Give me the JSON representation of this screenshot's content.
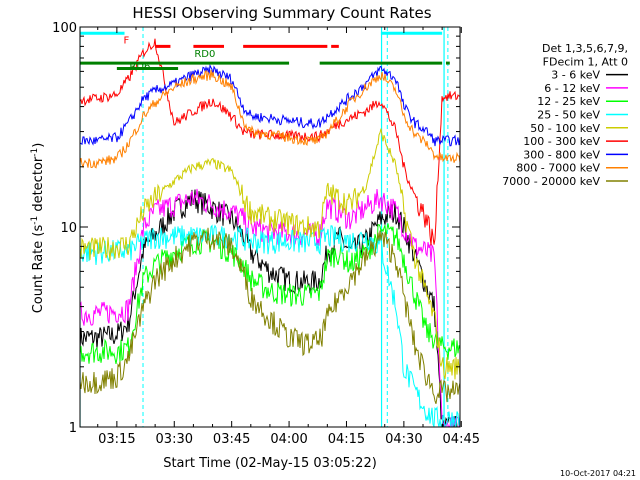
{
  "chart_data": {
    "type": "line",
    "title": "HESSI Observing Summary Count Rates",
    "xlabel": "Start Time (02-May-15 03:05:22)",
    "ylabel": "Count Rate (s⁻¹ detector⁻¹)",
    "ylabel_main": "Count Rate (s",
    "ylabel_sup1": "-1",
    "ylabel_mid": " detector",
    "ylabel_sup2": "-1",
    "ylabel_end": ")",
    "yscale": "log",
    "xlim": [
      "03:05:22",
      "04:44:40"
    ],
    "ylim": [
      1,
      100
    ],
    "x_ticks": [
      "03:15",
      "03:30",
      "03:45",
      "04:00",
      "04:15",
      "04:30",
      "04:45"
    ],
    "y_ticks": [
      "1",
      "10",
      "100"
    ],
    "legend_header": [
      "Det 1,3,5,6,7,9,",
      "FDecim 1, Att 0"
    ],
    "legend_position": "right",
    "timestamp": "10-Oct-2017 04:21",
    "annotations": [
      "F",
      "RD0",
      "RD6"
    ],
    "vertical_markers": {
      "solid": [
        "03:05:22",
        "04:24:10",
        "04:40:30"
      ],
      "dashed": [
        "03:21:50",
        "04:25:40",
        "04:41:30"
      ]
    },
    "series": [
      {
        "name": "3 - 6 keV",
        "color": "#000000",
        "x": [
          "03:05",
          "03:10",
          "03:15",
          "03:18",
          "03:22",
          "03:25",
          "03:30",
          "03:35",
          "03:40",
          "03:45",
          "03:48",
          "03:50",
          "03:55",
          "04:00",
          "04:05",
          "04:08",
          "04:10",
          "04:13",
          "04:16",
          "04:20",
          "04:24",
          "04:28",
          "04:30",
          "04:33",
          "04:36",
          "04:38",
          "04:40"
        ],
        "y": [
          2.8,
          2.8,
          2.9,
          3.3,
          7.8,
          9.2,
          12,
          14,
          12.5,
          11,
          9,
          7.5,
          6,
          5.4,
          5.3,
          5.4,
          7.5,
          9,
          7.5,
          8.5,
          11,
          12,
          10,
          7,
          5,
          4,
          1
        ]
      },
      {
        "name": "6 - 12 keV",
        "color": "#ff00ff",
        "x": [
          "03:05",
          "03:10",
          "03:15",
          "03:18",
          "03:22",
          "03:25",
          "03:30",
          "03:35",
          "03:40",
          "03:45",
          "03:48",
          "03:50",
          "03:55",
          "04:00",
          "04:05",
          "04:08",
          "04:10",
          "04:13",
          "04:16",
          "04:20",
          "04:24",
          "04:28",
          "04:30",
          "04:33",
          "04:36",
          "04:38",
          "04:40"
        ],
        "y": [
          3.7,
          3.7,
          3.8,
          3.9,
          10,
          12,
          13,
          14,
          13,
          12,
          11,
          10,
          9.5,
          9.3,
          9.2,
          9.3,
          13,
          12,
          11,
          12.5,
          14,
          12,
          10,
          8,
          7.5,
          7,
          1
        ]
      },
      {
        "name": "12 - 25 keV",
        "color": "#00ff00",
        "x": [
          "03:05",
          "03:10",
          "03:15",
          "03:18",
          "03:22",
          "03:25",
          "03:30",
          "03:35",
          "03:40",
          "03:45",
          "03:48",
          "03:50",
          "03:55",
          "04:00",
          "04:05",
          "04:08",
          "04:10",
          "04:13",
          "04:16",
          "04:20",
          "04:24",
          "04:28",
          "04:30",
          "04:33",
          "04:36",
          "04:38",
          "04:40"
        ],
        "y": [
          2.4,
          2.4,
          2.4,
          2.5,
          5.5,
          6.5,
          7.5,
          8.5,
          8.5,
          7.5,
          6.5,
          5.5,
          4.8,
          4.6,
          4.6,
          4.7,
          7,
          7.5,
          6.5,
          7.5,
          9.5,
          9,
          7,
          4.5,
          3,
          2.8,
          2.5
        ]
      },
      {
        "name": "25 - 50 keV",
        "color": "#00ffff",
        "x": [
          "03:05",
          "03:10",
          "03:15",
          "03:18",
          "03:22",
          "03:25",
          "03:30",
          "03:35",
          "03:40",
          "03:45",
          "03:48",
          "03:50",
          "03:55",
          "04:00",
          "04:05",
          "04:08",
          "04:10",
          "04:13",
          "04:16",
          "04:20",
          "04:24",
          "04:28",
          "04:30",
          "04:33",
          "04:36",
          "04:38",
          "04:40"
        ],
        "y": [
          7.5,
          7.5,
          7.6,
          7.6,
          8.5,
          9,
          9,
          9,
          9,
          9,
          8.8,
          8.5,
          8.5,
          8.5,
          8.4,
          8.5,
          9,
          8.8,
          8.5,
          9,
          8,
          4,
          2,
          1.5,
          1.2,
          1.1,
          1.1
        ]
      },
      {
        "name": "50 - 100 keV",
        "color": "#cccc00",
        "x": [
          "03:05",
          "03:10",
          "03:15",
          "03:18",
          "03:22",
          "03:25",
          "03:30",
          "03:35",
          "03:40",
          "03:45",
          "03:48",
          "03:50",
          "03:55",
          "04:00",
          "04:05",
          "04:08",
          "04:10",
          "04:13",
          "04:16",
          "04:20",
          "04:24",
          "04:28",
          "04:30",
          "04:33",
          "04:36",
          "04:38",
          "04:40"
        ],
        "y": [
          7.8,
          7.8,
          8,
          8.2,
          12,
          14,
          17,
          20,
          21,
          19,
          14,
          12,
          11,
          10.5,
          10,
          10,
          15,
          14,
          13,
          16,
          30,
          20,
          12,
          7,
          4.5,
          3.5,
          2
        ]
      },
      {
        "name": "100 - 300 keV",
        "color": "#ff0000",
        "x": [
          "03:05",
          "03:10",
          "03:15",
          "03:18",
          "03:22",
          "03:25",
          "03:30",
          "03:35",
          "03:40",
          "03:45",
          "03:48",
          "03:50",
          "03:55",
          "04:00",
          "04:05",
          "04:08",
          "04:10",
          "04:13",
          "04:16",
          "04:20",
          "04:24",
          "04:28",
          "04:30",
          "04:33",
          "04:36",
          "04:38",
          "04:40"
        ],
        "y": [
          43,
          44,
          46,
          55,
          75,
          85,
          33,
          38,
          43,
          36,
          30,
          29,
          29,
          28.5,
          28.5,
          28.5,
          30,
          33,
          35,
          38,
          43,
          30,
          20,
          14,
          11,
          8,
          45
        ]
      },
      {
        "name": "300 - 800 keV",
        "color": "#0000ff",
        "x": [
          "03:05",
          "03:10",
          "03:15",
          "03:18",
          "03:22",
          "03:25",
          "03:30",
          "03:35",
          "03:40",
          "03:45",
          "03:48",
          "03:50",
          "03:55",
          "04:00",
          "04:05",
          "04:08",
          "04:10",
          "04:13",
          "04:16",
          "04:20",
          "04:24",
          "04:28",
          "04:30",
          "04:33",
          "04:36",
          "04:38",
          "04:40"
        ],
        "y": [
          27,
          27,
          28,
          33,
          44,
          48,
          52,
          58,
          61,
          55,
          40,
          36,
          35,
          34,
          33,
          33,
          36,
          40,
          45,
          52,
          62,
          55,
          40,
          33,
          30,
          27,
          27
        ]
      },
      {
        "name": "800 - 7000 keV",
        "color": "#ff8000",
        "x": [
          "03:05",
          "03:10",
          "03:15",
          "03:18",
          "03:22",
          "03:25",
          "03:30",
          "03:35",
          "03:40",
          "03:45",
          "03:48",
          "03:50",
          "03:55",
          "04:00",
          "04:05",
          "04:08",
          "04:10",
          "04:13",
          "04:16",
          "04:20",
          "04:24",
          "04:28",
          "04:30",
          "04:33",
          "04:36",
          "04:38",
          "04:40"
        ],
        "y": [
          21,
          21,
          22,
          26,
          36,
          42,
          50,
          55,
          58,
          50,
          34,
          30,
          29,
          28,
          27,
          27,
          30,
          35,
          42,
          50,
          58,
          48,
          36,
          29,
          26,
          23,
          22
        ]
      },
      {
        "name": "7000 - 20000 keV",
        "color": "#808000",
        "x": [
          "03:05",
          "03:10",
          "03:15",
          "03:18",
          "03:22",
          "03:25",
          "03:30",
          "03:35",
          "03:40",
          "03:45",
          "03:48",
          "03:50",
          "03:55",
          "04:00",
          "04:05",
          "04:08",
          "04:10",
          "04:13",
          "04:16",
          "04:20",
          "04:24",
          "04:28",
          "04:30",
          "04:33",
          "04:36",
          "04:38",
          "04:40"
        ],
        "y": [
          1.7,
          1.7,
          1.8,
          2.2,
          4,
          5.5,
          7,
          8.5,
          9,
          8,
          6,
          4.5,
          3.5,
          2.8,
          2.6,
          2.7,
          3.5,
          4.5,
          5.5,
          7,
          9,
          7,
          4.5,
          2.5,
          1.8,
          1.5,
          1.5
        ]
      }
    ],
    "state_bars": [
      {
        "label": "F",
        "color": "#ff0000",
        "y": 80,
        "segments": [
          [
            "03:25",
            "03:29"
          ],
          [
            "03:35",
            "03:43"
          ],
          [
            "03:48",
            "04:10"
          ],
          [
            "04:11",
            "04:13"
          ]
        ]
      },
      {
        "label": "RD0",
        "color": "#008000",
        "y": 66,
        "segments": [
          [
            "03:05",
            "04:00"
          ],
          [
            "04:08",
            "04:40"
          ],
          [
            "04:41",
            "04:42"
          ]
        ]
      },
      {
        "label": "RD6",
        "color": "#008000",
        "y": 62,
        "segments": [
          [
            "03:15",
            "03:31"
          ]
        ]
      },
      {
        "label": "",
        "color": "#00ffff",
        "y": 93,
        "segments": [
          [
            "03:05",
            "03:17"
          ],
          [
            "04:24",
            "04:40"
          ]
        ]
      }
    ]
  }
}
